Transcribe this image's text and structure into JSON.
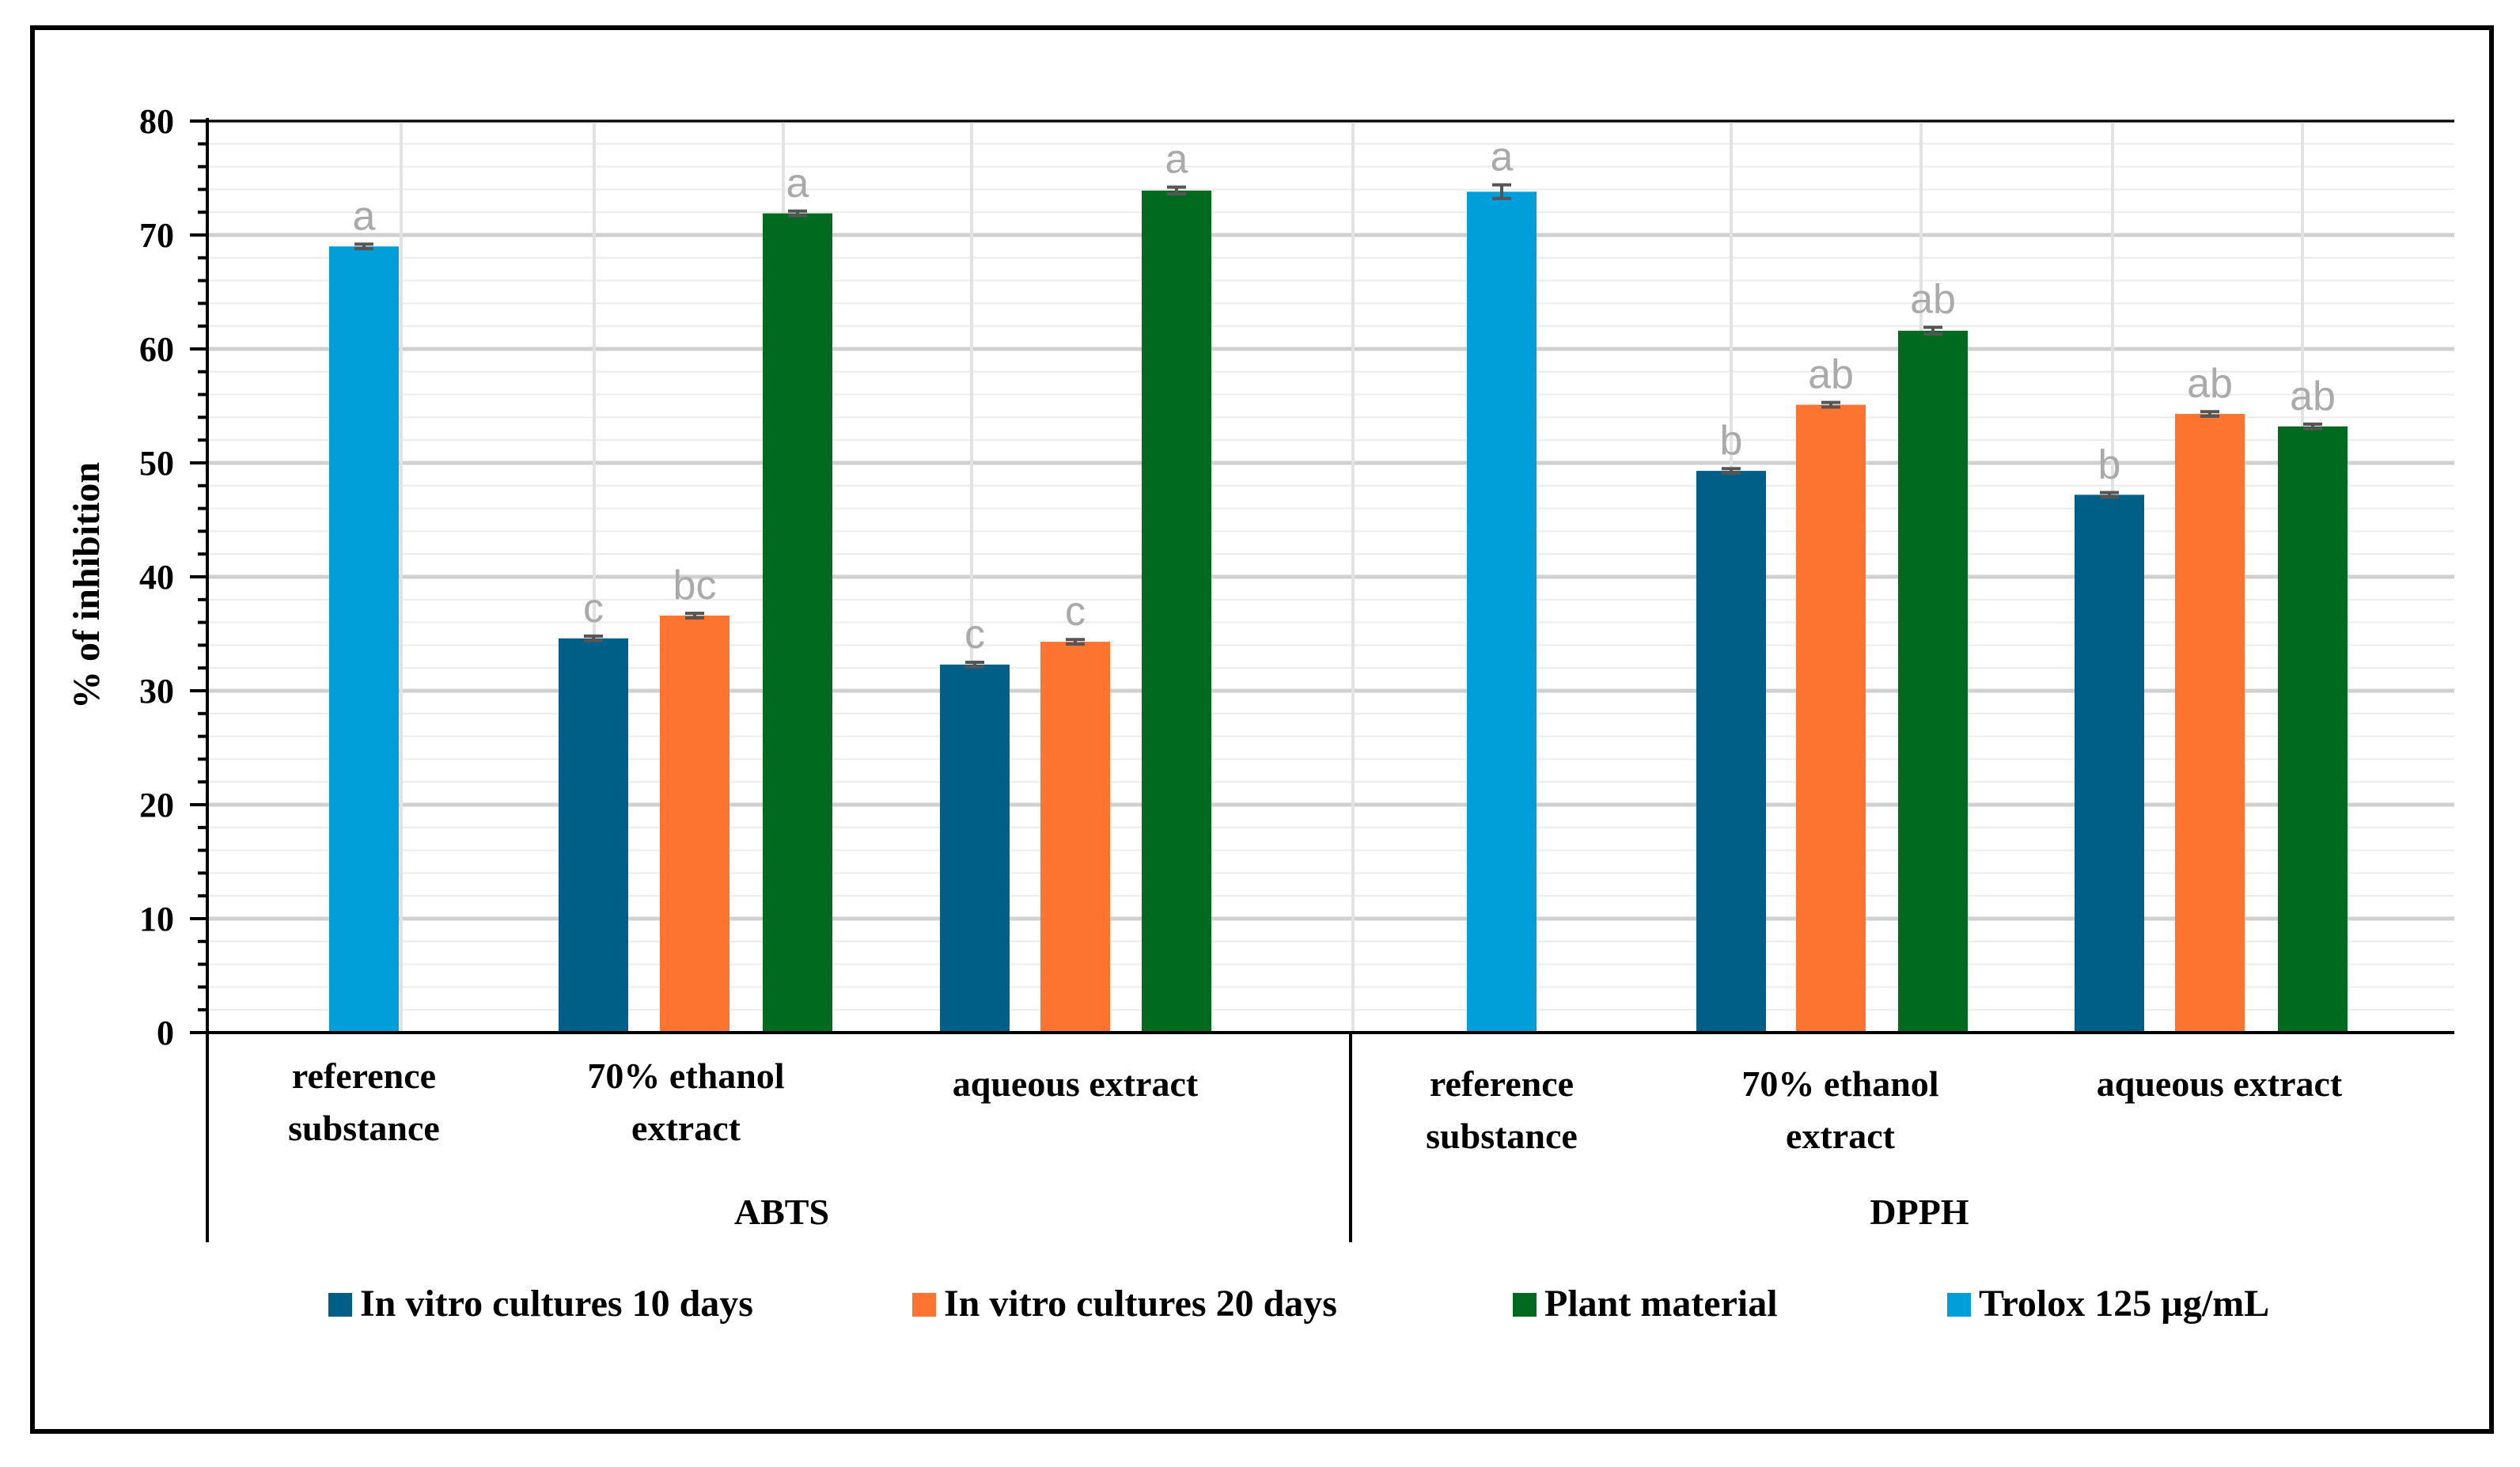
{
  "chart_data": {
    "type": "bar",
    "ylabel": "% of inhibition",
    "ylim": [
      0,
      80
    ],
    "yticks": [
      "0",
      "10",
      "20",
      "30",
      "40",
      "50",
      "60",
      "70",
      "80"
    ],
    "grid": true,
    "legend_position": "bottom",
    "groups": [
      {
        "name": "ABTS",
        "categories": [
          {
            "label_lines": [
              "reference",
              "substance"
            ],
            "bars": [
              {
                "series": "Trolox 125 µg/mL",
                "value": 69.0,
                "error": 0.2,
                "sig": "a"
              }
            ]
          },
          {
            "label_lines": [
              "70% ethanol",
              "extract"
            ],
            "bars": [
              {
                "series": "In vitro cultures 10 days",
                "value": 34.6,
                "error": 0.2,
                "sig": "c"
              },
              {
                "series": "In vitro cultures 20 days",
                "value": 36.6,
                "error": 0.2,
                "sig": "bc"
              },
              {
                "series": "Plant material",
                "value": 71.9,
                "error": 0.2,
                "sig": "a"
              }
            ]
          },
          {
            "label_lines": [
              "aqueous extract"
            ],
            "bars": [
              {
                "series": "In vitro cultures 10 days",
                "value": 32.3,
                "error": 0.2,
                "sig": "c"
              },
              {
                "series": "In vitro cultures 20 days",
                "value": 34.3,
                "error": 0.2,
                "sig": "c"
              },
              {
                "series": "Plant material",
                "value": 73.9,
                "error": 0.3,
                "sig": "a"
              }
            ]
          }
        ]
      },
      {
        "name": "DPPH",
        "categories": [
          {
            "label_lines": [
              "reference",
              "substance"
            ],
            "bars": [
              {
                "series": "Trolox 125 µg/mL",
                "value": 73.8,
                "error": 0.6,
                "sig": "a"
              }
            ]
          },
          {
            "label_lines": [
              "70% ethanol",
              "extract"
            ],
            "bars": [
              {
                "series": "In vitro cultures 10 days",
                "value": 49.3,
                "error": 0.2,
                "sig": "b"
              },
              {
                "series": "In vitro cultures 20 days",
                "value": 55.1,
                "error": 0.2,
                "sig": "ab"
              },
              {
                "series": "Plant material",
                "value": 61.6,
                "error": 0.3,
                "sig": "ab"
              }
            ]
          },
          {
            "label_lines": [
              "aqueous extract"
            ],
            "bars": [
              {
                "series": "In vitro cultures 10 days",
                "value": 47.2,
                "error": 0.2,
                "sig": "b"
              },
              {
                "series": "In vitro cultures 20 days",
                "value": 54.3,
                "error": 0.2,
                "sig": "ab"
              },
              {
                "series": "Plant material",
                "value": 53.2,
                "error": 0.2,
                "sig": "ab"
              }
            ]
          }
        ]
      }
    ],
    "legend": [
      {
        "name": "In vitro cultures 10 days",
        "color": "#005f87"
      },
      {
        "name": "In vitro cultures 20 days",
        "color": "#fd7431"
      },
      {
        "name": "Plant material",
        "color": "#006b1e"
      },
      {
        "name": "Trolox 125 µg/mL",
        "color": "#009fda"
      }
    ],
    "colors": {
      "In vitro cultures 10 days": "#005f87",
      "In vitro cultures 20 days": "#fd7431",
      "Plant material": "#006b1e",
      "Trolox 125 µg/mL": "#009fda",
      "sig_label": "#aaaaaa",
      "grid": "#dcdcdc",
      "error_bar": "#555555"
    }
  }
}
